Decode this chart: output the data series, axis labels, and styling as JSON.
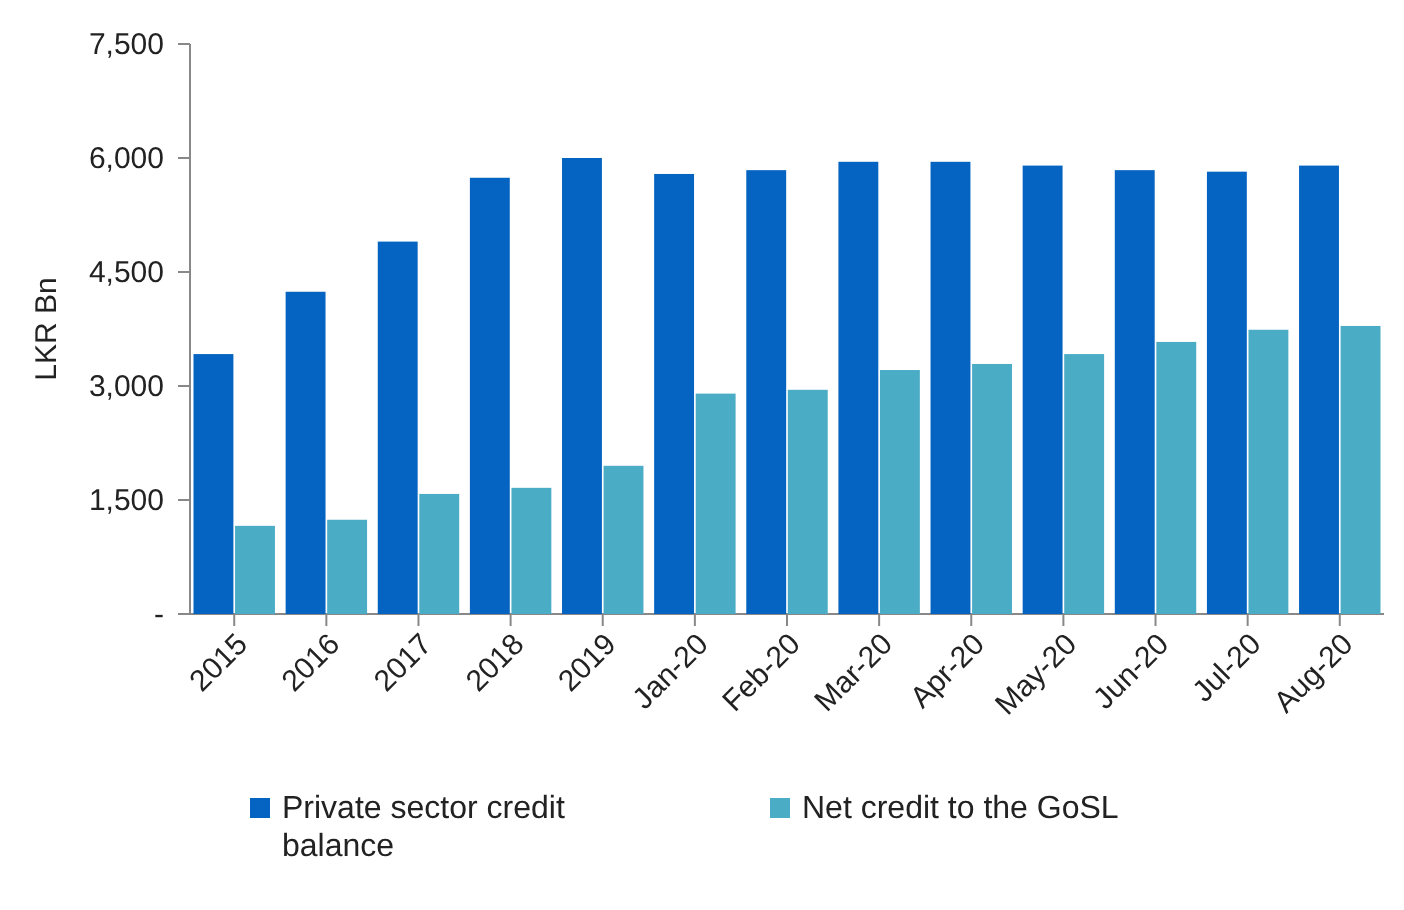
{
  "chart_data": {
    "type": "bar",
    "ylabel": "LKR Bn",
    "categories": [
      "2015",
      "2016",
      "2017",
      "2018",
      "2019",
      "Jan-20",
      "Feb-20",
      "Mar-20",
      "Apr-20",
      "May-20",
      "Jun-20",
      "Jul-20",
      "Aug-20"
    ],
    "series": [
      {
        "name": "Private sector credit balance",
        "color": "#0563c1",
        "values": [
          3420,
          4240,
          4900,
          5740,
          6000,
          5790,
          5840,
          5950,
          5950,
          5900,
          5840,
          5820,
          5900
        ]
      },
      {
        "name": "Net credit to the GoSL",
        "color": "#4bacc6",
        "values": [
          1160,
          1240,
          1580,
          1660,
          1950,
          2900,
          2950,
          3210,
          3290,
          3420,
          3580,
          3740,
          3790
        ]
      }
    ],
    "ylim": [
      0,
      7500
    ],
    "yticks": [
      {
        "value": 0,
        "label": "-"
      },
      {
        "value": 1500,
        "label": "1,500"
      },
      {
        "value": 3000,
        "label": "3,000"
      },
      {
        "value": 4500,
        "label": "4,500"
      },
      {
        "value": 6000,
        "label": "6,000"
      },
      {
        "value": 7500,
        "label": "7,500"
      }
    ],
    "grid": false,
    "legend": "bottom"
  }
}
